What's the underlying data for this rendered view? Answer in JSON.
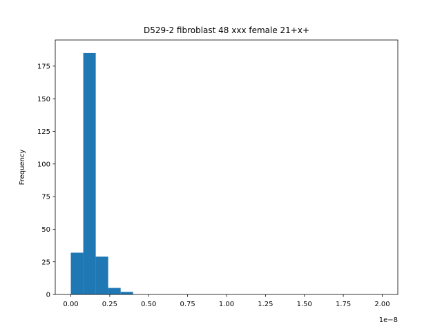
{
  "chart_data": {
    "type": "bar",
    "title": "D529-2 fibroblast 48 xxx female 21+x+",
    "xlabel": "",
    "ylabel": "Frequency",
    "x_offset_label": "1e−8",
    "bar_color": "#1f77b4",
    "xlim": [
      -0.1,
      2.1
    ],
    "ylim": [
      0,
      195
    ],
    "bins": [
      {
        "x0": 0.0,
        "x1": 0.08,
        "count": 32
      },
      {
        "x0": 0.08,
        "x1": 0.16,
        "count": 185
      },
      {
        "x0": 0.16,
        "x1": 0.24,
        "count": 29
      },
      {
        "x0": 0.24,
        "x1": 0.32,
        "count": 5
      },
      {
        "x0": 0.32,
        "x1": 0.4,
        "count": 2
      }
    ],
    "x_ticks": [
      {
        "value": 0.0,
        "label": "0.00"
      },
      {
        "value": 0.25,
        "label": "0.25"
      },
      {
        "value": 0.5,
        "label": "0.50"
      },
      {
        "value": 0.75,
        "label": "0.75"
      },
      {
        "value": 1.0,
        "label": "1.00"
      },
      {
        "value": 1.25,
        "label": "1.25"
      },
      {
        "value": 1.5,
        "label": "1.50"
      },
      {
        "value": 1.75,
        "label": "1.75"
      },
      {
        "value": 2.0,
        "label": "2.00"
      }
    ],
    "y_ticks": [
      {
        "value": 0,
        "label": "0"
      },
      {
        "value": 25,
        "label": "25"
      },
      {
        "value": 50,
        "label": "50"
      },
      {
        "value": 75,
        "label": "75"
      },
      {
        "value": 100,
        "label": "100"
      },
      {
        "value": 125,
        "label": "125"
      },
      {
        "value": 150,
        "label": "150"
      },
      {
        "value": 175,
        "label": "175"
      }
    ],
    "grid": false,
    "legend": "none"
  }
}
